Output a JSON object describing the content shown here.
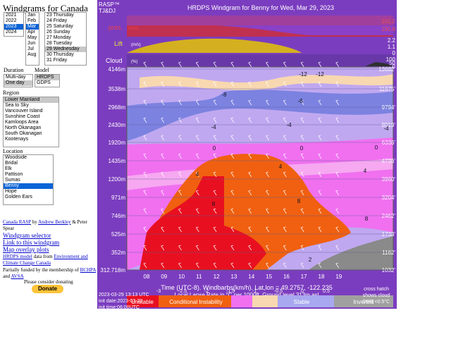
{
  "sidebar": {
    "title": "Windgrams for Canada",
    "years": [
      "2021",
      "2022",
      "2023",
      "2024"
    ],
    "months": [
      "Jan",
      "Feb",
      "Mar",
      "Apr",
      "May",
      "Jun",
      "Jul",
      "Aug"
    ],
    "days": [
      "23 Thursday",
      "24 Friday",
      "25 Saturday",
      "26 Sunday",
      "27 Monday",
      "28 Tuesday",
      "29 Wednesday",
      "30 Thursday",
      "31 Friday"
    ],
    "duration_label": "Duration",
    "model_label": "Model",
    "durations": [
      "Multi-day",
      "One day"
    ],
    "models": [
      "HRDPS",
      "GDPS"
    ],
    "region_label": "Region",
    "regions": [
      "Lower Mainland",
      "Sea to Sky",
      "Vancouver Island",
      "Sunshine Coast",
      "Kamloops Area",
      "North Okanagan",
      "South Okanagan",
      "Kootenays"
    ],
    "location_label": "Location",
    "locations": [
      "Woodside",
      "Bridal",
      "Elk",
      "Pattison",
      "Sumas",
      "Benny",
      "Hope",
      "Golden Ears"
    ],
    "credit_link": "Canada RASP",
    "credit_by": "by",
    "credit_author": "Andrew Berkley",
    "credit_rest": "& Peter Spear",
    "links": [
      "Windgram selector",
      "Link to this windgram",
      "Map overlay plots"
    ],
    "model_link": "HRDPS model",
    "model_text": "data from",
    "ec_link": "Environment and Climate Change Canada",
    "funded": "Partially funded by the membership of",
    "bchpa": "BCHPA",
    "and": "and",
    "avsa": "AVSA",
    "donate_note": "Please consider donating",
    "donate": "Donate"
  },
  "windgram": {
    "brand": "RASP™",
    "brand2": "TJ&DJ",
    "title": "HRDPS Windgram for Benny for Wed, Mar 29, 2023",
    "pres": "pres.",
    "pres_unit": "(kPa)",
    "lift": "Lift",
    "lift_unit": "(m/s)",
    "cloud": "Cloud",
    "cloud_unit": "(%)",
    "right_scale": [
      "101.2",
      "100.8",
      "2.2",
      "1.1",
      "0",
      "100",
      "50",
      "0"
    ],
    "alt_m": [
      "4146m",
      "3538m",
      "2968m",
      "2430m",
      "1920m",
      "1435m",
      "1200m",
      "971m",
      "746m",
      "525m",
      "352m",
      "312.718m"
    ],
    "alt_ft": [
      "13682'",
      "11675'",
      "9794'",
      "8019'",
      "6336'",
      "4736'",
      "3960'",
      "3204'",
      "2462'",
      "1733'",
      "1162'",
      "1032'"
    ],
    "hours": [
      "08",
      "09",
      "10",
      "11",
      "12",
      "13",
      "14",
      "15",
      "16",
      "17",
      "18",
      "19"
    ],
    "contours": [
      "-12",
      "-12",
      "-8",
      "-8",
      "-4",
      "-4",
      "-4",
      "0",
      "0",
      "0",
      "4",
      "4",
      "4",
      "8",
      "8",
      "8",
      "2"
    ],
    "x_title": "Time (UTC-8). Windbarbs(km/h). Lat,lon = 49.2757, -122.235",
    "subtitle": "Local Lapse Rate in °C per 1000ft.   Ground level 313m asl",
    "stamp": [
      "2023-03-29 13:13 UTC",
      "init date:2023-03-29",
      "init time:06:00UTC"
    ],
    "note": [
      "cross hatch",
      "shows cloud",
      "DPR <0.5°C"
    ],
    "legend_ticks": [
      "-3",
      "-2.5",
      "-2",
      "-1.5",
      "-1",
      "-0.5",
      "0",
      "0.5"
    ],
    "legend": [
      "Unstable",
      "Conditional Instability",
      "Stable",
      "Inverted"
    ]
  }
}
